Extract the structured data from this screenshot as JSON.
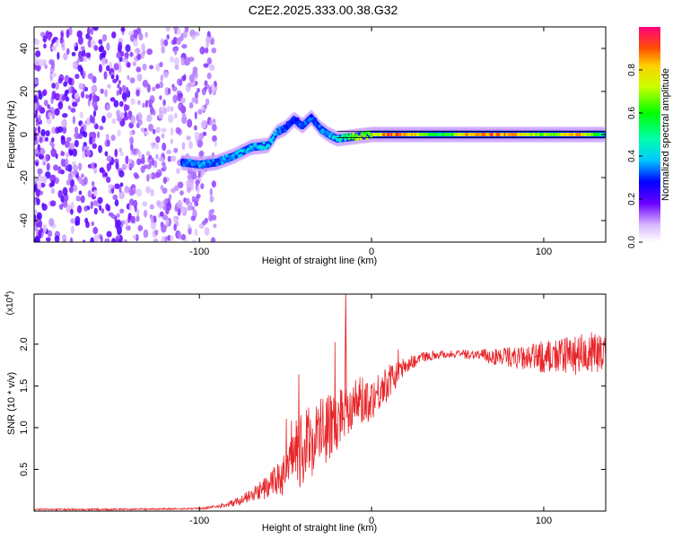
{
  "title": "C2E2.2025.333.00.38.G32",
  "colors": {
    "snr_line": "#e8262a",
    "spec_purple": "#7a22e0",
    "frame": "#000000"
  },
  "chart_data": [
    {
      "type": "heatmap",
      "title": "C2E2.2025.333.00.38.G32",
      "xlabel": "Height of straight line (km)",
      "ylabel": "Frequency (Hz)",
      "xlim": [
        -196,
        136
      ],
      "ylim": [
        -50,
        50
      ],
      "x_ticks": [
        -100,
        0,
        100
      ],
      "y_ticks": [
        -40,
        -20,
        0,
        20,
        40
      ],
      "colorbar": {
        "label": "Normalized spectral amplitude",
        "range": [
          0,
          1
        ],
        "ticks": [
          0.0,
          0.2,
          0.4,
          0.6,
          0.8
        ]
      },
      "ridge": {
        "description": "frequency track of peak amplitude vs height",
        "height_km": [
          -110,
          -100,
          -90,
          -80,
          -70,
          -60,
          -55,
          -50,
          -45,
          -40,
          -35,
          -30,
          -25,
          -20,
          -10,
          0,
          10,
          20,
          40,
          60,
          80,
          100,
          120,
          135
        ],
        "frequency_hz": [
          -13,
          -14,
          -13,
          -10,
          -6,
          -5,
          1,
          3,
          7,
          4,
          8,
          3,
          0,
          -2,
          -1,
          0,
          0,
          0,
          0,
          0,
          0,
          0,
          0,
          0
        ],
        "amplitude": [
          0.35,
          0.4,
          0.35,
          0.4,
          0.4,
          0.45,
          0.4,
          0.35,
          0.3,
          0.35,
          0.35,
          0.35,
          0.4,
          0.45,
          0.7,
          0.75,
          0.95,
          0.95,
          0.55,
          0.95,
          0.95,
          0.7,
          0.9,
          0.5
        ]
      },
      "noise_region_km": [
        -196,
        -90
      ]
    },
    {
      "type": "line",
      "xlabel": "Height of straight line (km)",
      "ylabel": "SNR (10 * v/v)",
      "y_multiplier": "(x10",
      "y_multiplier_exp": "4",
      "xlim": [
        -196,
        136
      ],
      "ylim": [
        0,
        2.6
      ],
      "x_ticks": [
        -100,
        0,
        100
      ],
      "y_ticks": [
        0.5,
        1.0,
        1.5,
        2.0
      ],
      "series": [
        {
          "name": "SNR",
          "x": [
            -196,
            -150,
            -100,
            -90,
            -80,
            -70,
            -60,
            -50,
            -45,
            -40,
            -35,
            -30,
            -25,
            -20,
            -15,
            -10,
            -5,
            0,
            5,
            10,
            15,
            20,
            30,
            40,
            50,
            60,
            70,
            80,
            90,
            100,
            110,
            120,
            130,
            136
          ],
          "y": [
            0.02,
            0.02,
            0.03,
            0.05,
            0.1,
            0.18,
            0.3,
            0.45,
            0.6,
            0.75,
            0.85,
            0.95,
            1.0,
            1.1,
            1.25,
            1.3,
            1.32,
            1.35,
            1.45,
            1.55,
            1.65,
            1.75,
            1.85,
            1.88,
            1.88,
            1.88,
            1.85,
            1.85,
            1.82,
            1.85,
            1.85,
            1.88,
            1.9,
            1.85
          ],
          "noise_amplitude": [
            0.01,
            0.01,
            0.01,
            0.02,
            0.04,
            0.08,
            0.15,
            0.25,
            0.35,
            0.45,
            0.45,
            0.45,
            0.4,
            0.4,
            0.35,
            0.3,
            0.3,
            0.25,
            0.25,
            0.2,
            0.15,
            0.1,
            0.06,
            0.05,
            0.05,
            0.06,
            0.1,
            0.12,
            0.15,
            0.2,
            0.22,
            0.25,
            0.25,
            0.25
          ]
        }
      ]
    }
  ]
}
